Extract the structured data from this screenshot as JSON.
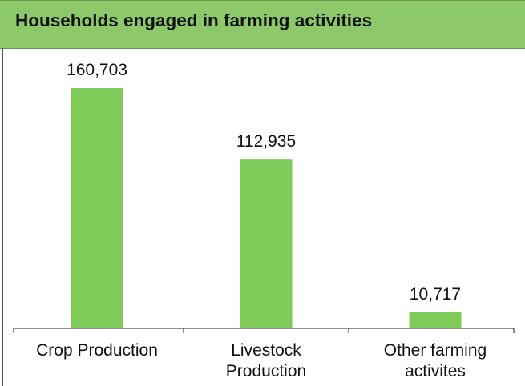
{
  "header": {
    "title": "Households engaged in farming activities"
  },
  "colors": {
    "header_bg": "#8dc96b",
    "bar": "#7ecb5a"
  },
  "chart_data": {
    "type": "bar",
    "title": "Households engaged in farming activities",
    "categories": [
      "Crop Production",
      "Livestock Production",
      "Other farming activites"
    ],
    "category_label_lines": [
      [
        "Crop Production"
      ],
      [
        "Livestock",
        "Production"
      ],
      [
        "Other farming",
        "activites"
      ]
    ],
    "values": [
      160703,
      112935,
      10717
    ],
    "value_labels": [
      "160,703",
      "112,935",
      "10,717"
    ],
    "ylim": [
      0,
      180000
    ],
    "grid": false,
    "legend": "none",
    "xlabel": "",
    "ylabel": ""
  }
}
